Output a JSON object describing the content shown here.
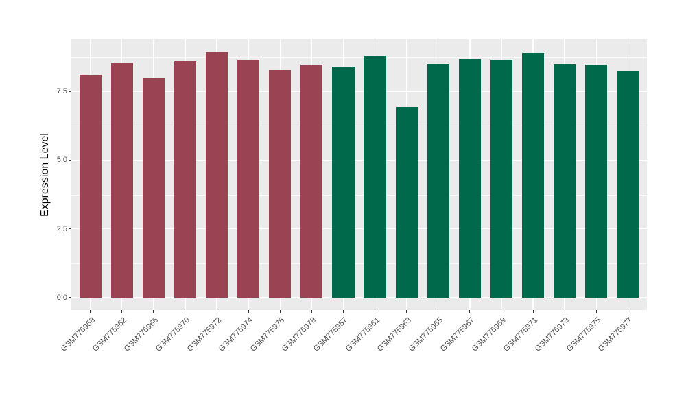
{
  "figure": {
    "background": "#FFFFFF",
    "panel_background": "#EBEBEB",
    "gridline_color": "#FFFFFF",
    "tick_mark_color": "#333333",
    "tick_label_color": "#4D4D4D",
    "axis_title_color": "#000000"
  },
  "chart_data": {
    "type": "bar",
    "title": "",
    "xlabel": "",
    "ylabel": "Expression Level",
    "ylim": [
      -0.45,
      9.4
    ],
    "yticks": [
      0.0,
      2.5,
      5.0,
      7.5
    ],
    "ytick_labels": [
      "0.0",
      "2.5",
      "5.0",
      "7.5"
    ],
    "yticks_minor": [
      1.25,
      3.75,
      6.25,
      8.75
    ],
    "grid": "major+minor, white on gray panel (ggplot style)",
    "legend": false,
    "bar_width_fraction": 0.7,
    "categories": [
      "GSM775958",
      "GSM775962",
      "GSM775966",
      "GSM775970",
      "GSM775972",
      "GSM775974",
      "GSM775976",
      "GSM775978",
      "GSM775957",
      "GSM775961",
      "GSM775963",
      "GSM775965",
      "GSM775967",
      "GSM775969",
      "GSM775971",
      "GSM775973",
      "GSM775975",
      "GSM775977"
    ],
    "values": [
      8.11,
      8.52,
      8.0,
      8.59,
      8.93,
      8.64,
      8.28,
      8.46,
      8.4,
      8.8,
      6.93,
      8.48,
      8.68,
      8.65,
      8.91,
      8.47,
      8.44,
      8.23
    ],
    "bar_colors": [
      "#9A4352",
      "#9A4352",
      "#9A4352",
      "#9A4352",
      "#9A4352",
      "#9A4352",
      "#9A4352",
      "#9A4352",
      "#00694B",
      "#00694B",
      "#00694B",
      "#00694B",
      "#00694B",
      "#00694B",
      "#00694B",
      "#00694B",
      "#00694B",
      "#00694B"
    ],
    "group_colors": {
      "maroon_group": "#9A4352",
      "green_group": "#00694B"
    }
  }
}
